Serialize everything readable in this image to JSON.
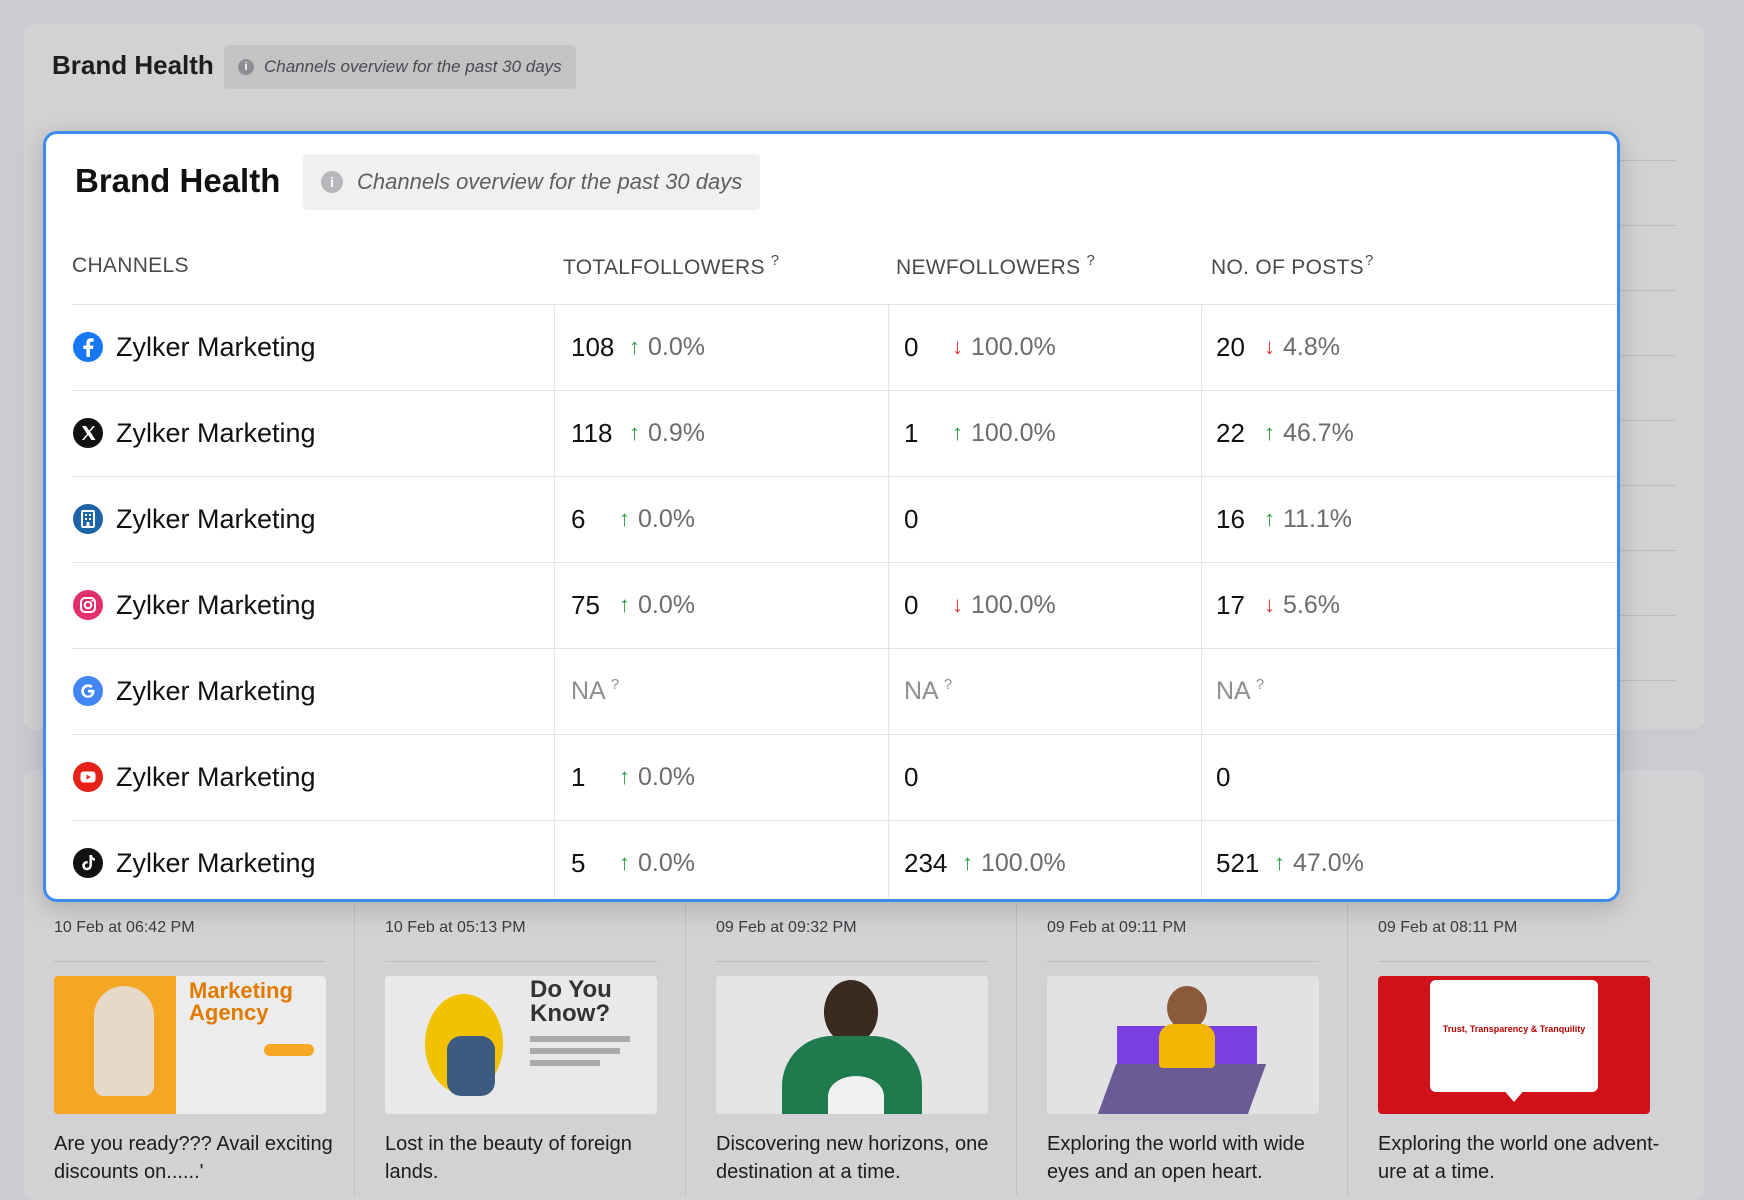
{
  "background": {
    "title": "Brand Health",
    "info_text": "Channels overview for the past 30 days",
    "posts": [
      {
        "date": "10 Feb at 06:42 PM",
        "text": "Are you ready??? Avail exciting discounts on......'",
        "thumb_text": "Marketing Agency",
        "thumb_color": "#f5a623"
      },
      {
        "date": "10 Feb at 05:13 PM",
        "text": "Lost in the beauty of foreign lands.",
        "thumb_text": "Do You Know?",
        "thumb_color": "#f2c200"
      },
      {
        "date": "09 Feb at 09:32 PM",
        "text": "Discovering new horizons, one destination at a time.",
        "thumb_text": "",
        "thumb_color": "#1f7a4d"
      },
      {
        "date": "09 Feb at 09:11 PM",
        "text": "Exploring the world with wide eyes and an open heart.",
        "thumb_text": "",
        "thumb_color": "#7b3fe4"
      },
      {
        "date": "09 Feb at 08:11 PM",
        "text": "Exploring the world one advent-ure at a time.",
        "thumb_text": "Trust, Transparency & Tranquility",
        "thumb_color": "#d0111a"
      }
    ]
  },
  "modal": {
    "title": "Brand Health",
    "info_text": "Channels overview for the past 30 days",
    "headers": {
      "channels": "CHANNELS",
      "total_followers": "TOTALFOLLOWERS",
      "new_followers": "NEWFOLLOWERS",
      "posts": "NO. OF POSTS",
      "help_mark": "?"
    },
    "rows": [
      {
        "channel": "Zylker Marketing",
        "icon": "facebook-icon",
        "total": {
          "value": "108",
          "dir": "up",
          "pct": "0.0%"
        },
        "new": {
          "value": "0",
          "dir": "down",
          "pct": "100.0%"
        },
        "posts": {
          "value": "20",
          "dir": "down",
          "pct": "4.8%"
        }
      },
      {
        "channel": "Zylker Marketing",
        "icon": "x-icon",
        "total": {
          "value": "118",
          "dir": "up",
          "pct": "0.9%"
        },
        "new": {
          "value": "1",
          "dir": "up",
          "pct": "100.0%"
        },
        "posts": {
          "value": "22",
          "dir": "up",
          "pct": "46.7%"
        }
      },
      {
        "channel": "Zylker Marketing",
        "icon": "linkedin-page-icon",
        "total": {
          "value": "6",
          "dir": "up",
          "pct": "0.0%"
        },
        "new": {
          "value": "0",
          "dir": "",
          "pct": ""
        },
        "posts": {
          "value": "16",
          "dir": "up",
          "pct": "11.1%"
        }
      },
      {
        "channel": "Zylker Marketing",
        "icon": "instagram-icon",
        "total": {
          "value": "75",
          "dir": "up",
          "pct": "0.0%"
        },
        "new": {
          "value": "0",
          "dir": "down",
          "pct": "100.0%"
        },
        "posts": {
          "value": "17",
          "dir": "down",
          "pct": "5.6%"
        }
      },
      {
        "channel": "Zylker Marketing",
        "icon": "google-icon",
        "total": {
          "value": "NA",
          "dir": "na",
          "pct": ""
        },
        "new": {
          "value": "NA",
          "dir": "na",
          "pct": ""
        },
        "posts": {
          "value": "NA",
          "dir": "na",
          "pct": ""
        }
      },
      {
        "channel": "Zylker Marketing",
        "icon": "youtube-icon",
        "total": {
          "value": "1",
          "dir": "up",
          "pct": "0.0%"
        },
        "new": {
          "value": "0",
          "dir": "",
          "pct": ""
        },
        "posts": {
          "value": "0",
          "dir": "",
          "pct": ""
        }
      },
      {
        "channel": "Zylker Marketing",
        "icon": "tiktok-icon",
        "total": {
          "value": "5",
          "dir": "up",
          "pct": "0.0%"
        },
        "new": {
          "value": "234",
          "dir": "up",
          "pct": "100.0%"
        },
        "posts": {
          "value": "521",
          "dir": "up",
          "pct": "47.0%"
        }
      }
    ],
    "arrows": {
      "up": "↑",
      "down": "↓"
    },
    "colors": {
      "accent_border": "#3b8ef0",
      "up": "#2f9e44",
      "down": "#e03131"
    }
  }
}
